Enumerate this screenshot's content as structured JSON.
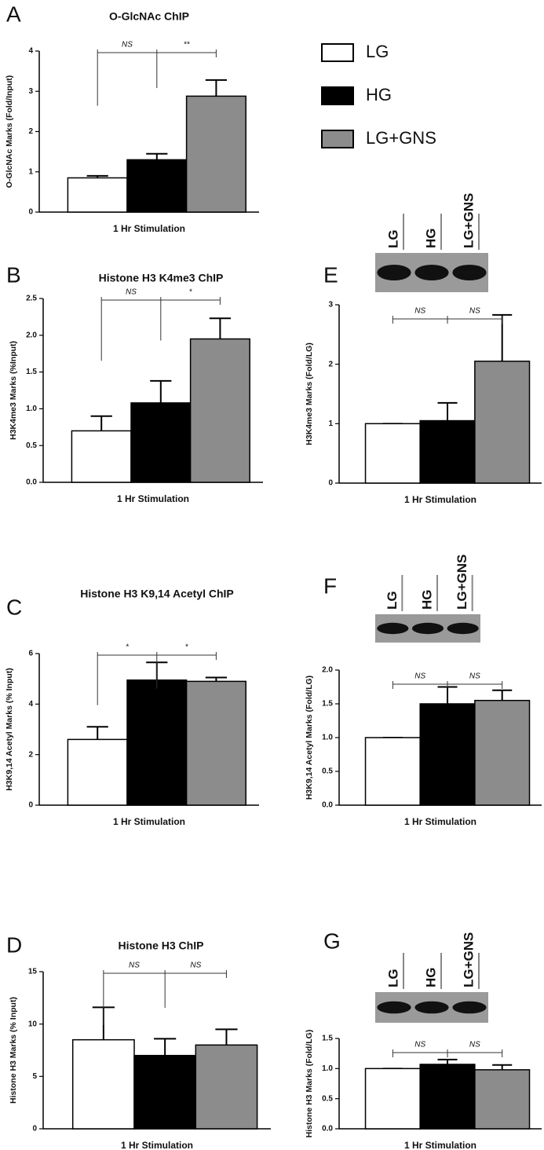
{
  "legend": {
    "series": [
      {
        "name": "LG",
        "color": "#ffffff"
      },
      {
        "name": "HG",
        "color": "#000000"
      },
      {
        "name": "LG+GNS",
        "color": "#8c8c8c"
      }
    ]
  },
  "chart_data": [
    {
      "type": "bar",
      "panel": "A",
      "title": "O-GlcNAc ChIP",
      "ylabel": "O-GlcNAc Marks (Fold/Input)",
      "xlabel": "1 Hr Stimulation",
      "values": [
        0.85,
        1.3,
        2.88
      ],
      "errors": [
        0.05,
        0.15,
        0.4
      ],
      "ylim": [
        0,
        4
      ],
      "yticks": [
        0,
        1,
        2,
        3,
        4
      ],
      "significance": [
        "NS",
        "**"
      ]
    },
    {
      "type": "bar",
      "panel": "B",
      "title": "Histone H3 K4me3 ChIP",
      "ylabel": "H3K4me3 Marks (%Input)",
      "xlabel": "1 Hr Stimulation",
      "values": [
        0.7,
        1.08,
        1.95
      ],
      "errors": [
        0.2,
        0.3,
        0.28
      ],
      "ylim": [
        0,
        2.5
      ],
      "yticks": [
        {
          "value": 0,
          "label": "0.0"
        },
        0.5,
        {
          "value": 1,
          "label": "1.0"
        },
        1.5,
        {
          "value": 2,
          "label": "2.0"
        },
        2.5
      ],
      "significance": [
        "NS",
        "*"
      ]
    },
    {
      "type": "bar",
      "panel": "E",
      "ylabel": "H3K4me3 Marks (Fold/LG)",
      "xlabel": "1 Hr Stimulation",
      "blot_lanes": [
        "LG",
        "HG",
        "LG+GNS"
      ],
      "values": [
        1.0,
        1.05,
        2.05
      ],
      "errors": [
        0,
        0.3,
        0.78
      ],
      "ylim": [
        0,
        3
      ],
      "yticks": [
        0,
        1,
        2,
        3
      ],
      "significance": [
        "NS",
        "NS"
      ]
    },
    {
      "type": "bar",
      "panel": "C",
      "title": "Histone H3 K9,14 Acetyl ChIP",
      "ylabel": "H3K9,14 Acetyl Marks (% Input)",
      "xlabel": "1 Hr Stimulation",
      "values": [
        2.6,
        4.95,
        4.9
      ],
      "errors": [
        0.5,
        0.7,
        0.15
      ],
      "ylim": [
        0,
        6
      ],
      "yticks": [
        0,
        2,
        4,
        6
      ],
      "significance": [
        "*",
        "*"
      ]
    },
    {
      "type": "bar",
      "panel": "F",
      "ylabel": "H3K9,14 Acetyl Marks (Fold/LG)",
      "xlabel": "1 Hr Stimulation",
      "blot_lanes": [
        "LG",
        "HG",
        "LG+GNS"
      ],
      "values": [
        1.0,
        1.5,
        1.55
      ],
      "errors": [
        0,
        0.25,
        0.15
      ],
      "ylim": [
        0,
        2
      ],
      "yticks": [
        {
          "value": 0,
          "label": "0.0"
        },
        0.5,
        {
          "value": 1,
          "label": "1.0"
        },
        1.5,
        {
          "value": 2,
          "label": "2.0"
        }
      ],
      "significance": [
        "NS",
        "NS"
      ]
    },
    {
      "type": "bar",
      "panel": "D",
      "title": "Histone H3 ChIP",
      "ylabel": "Histone H3 Marks (% Input)",
      "xlabel": "1 Hr Stimulation",
      "values": [
        8.5,
        7.0,
        8.0
      ],
      "errors": [
        3.1,
        1.6,
        1.5
      ],
      "ylim": [
        0,
        15
      ],
      "yticks": [
        0,
        5,
        10,
        15
      ],
      "significance": [
        "NS",
        "NS"
      ]
    },
    {
      "type": "bar",
      "panel": "G",
      "ylabel": "Histone H3 Marks (Fold/LG)",
      "xlabel": "1 Hr Stimulation",
      "blot_lanes": [
        "LG",
        "HG",
        "LG+GNS"
      ],
      "values": [
        1.0,
        1.07,
        0.98
      ],
      "errors": [
        0,
        0.08,
        0.08
      ],
      "ylim": [
        0,
        1.5
      ],
      "yticks": [
        {
          "value": 0,
          "label": "0.0"
        },
        0.5,
        {
          "value": 1,
          "label": "1.0"
        },
        1.5
      ],
      "significance": [
        "NS",
        "NS"
      ]
    }
  ]
}
